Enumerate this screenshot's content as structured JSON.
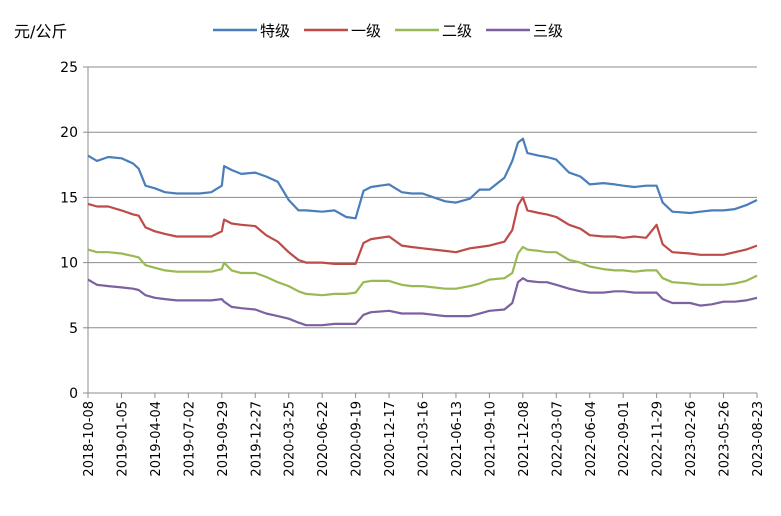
{
  "chart_data": {
    "type": "line",
    "title": "",
    "ylabel": "元/公斤",
    "xlabel": "",
    "ylim": [
      0,
      25
    ],
    "yticks": [
      0,
      5,
      10,
      15,
      20,
      25
    ],
    "grid": "horizontal",
    "legend_position": "top-center",
    "x_start": "2018-10-08",
    "x_end": "2023-08-23",
    "x_tick_labels": [
      "2018-10-08",
      "2019-01-05",
      "2019-04-04",
      "2019-07-02",
      "2019-09-29",
      "2019-12-27",
      "2020-03-25",
      "2020-06-22",
      "2020-09-19",
      "2020-12-17",
      "2021-03-16",
      "2021-06-13",
      "2021-09-10",
      "2021-12-08",
      "2022-03-07",
      "2022-06-04",
      "2022-09-01",
      "2022-11-29",
      "2023-02-26",
      "2023-05-26",
      "2023-08-23"
    ],
    "x": [
      "2018-10-08",
      "2018-11-01",
      "2018-12-01",
      "2019-01-05",
      "2019-02-05",
      "2019-02-20",
      "2019-03-10",
      "2019-04-04",
      "2019-05-01",
      "2019-06-01",
      "2019-07-02",
      "2019-08-01",
      "2019-09-01",
      "2019-09-29",
      "2019-10-05",
      "2019-10-25",
      "2019-11-20",
      "2019-12-27",
      "2020-01-25",
      "2020-02-25",
      "2020-03-25",
      "2020-04-20",
      "2020-05-10",
      "2020-06-22",
      "2020-07-25",
      "2020-08-25",
      "2020-09-19",
      "2020-10-10",
      "2020-10-30",
      "2020-12-17",
      "2021-01-20",
      "2021-02-15",
      "2021-03-16",
      "2021-04-15",
      "2021-05-15",
      "2021-06-13",
      "2021-07-20",
      "2021-08-15",
      "2021-09-10",
      "2021-10-20",
      "2021-11-10",
      "2021-11-25",
      "2021-12-08",
      "2021-12-20",
      "2022-01-20",
      "2022-02-10",
      "2022-03-07",
      "2022-04-10",
      "2022-05-10",
      "2022-06-04",
      "2022-07-10",
      "2022-08-10",
      "2022-09-01",
      "2022-10-01",
      "2022-11-01",
      "2022-11-29",
      "2022-12-15",
      "2023-01-10",
      "2023-02-26",
      "2023-03-25",
      "2023-04-25",
      "2023-05-26",
      "2023-06-25",
      "2023-07-25",
      "2023-08-23"
    ],
    "series": [
      {
        "name": "特级",
        "color": "#4A7EBB",
        "values": [
          18.2,
          17.8,
          18.1,
          18.0,
          17.6,
          17.2,
          15.9,
          15.7,
          15.4,
          15.3,
          15.3,
          15.3,
          15.4,
          15.9,
          17.4,
          17.1,
          16.8,
          16.9,
          16.6,
          16.2,
          14.8,
          14.0,
          14.0,
          13.9,
          14.0,
          13.5,
          13.4,
          15.5,
          15.8,
          16.0,
          15.4,
          15.3,
          15.3,
          15.0,
          14.7,
          14.6,
          14.9,
          15.6,
          15.6,
          16.5,
          17.8,
          19.2,
          19.5,
          18.4,
          18.2,
          18.1,
          17.9,
          16.9,
          16.6,
          16.0,
          16.1,
          16.0,
          15.9,
          15.8,
          15.9,
          15.9,
          14.6,
          13.9,
          13.8,
          13.9,
          14.0,
          14.0,
          14.1,
          14.4,
          14.8
        ]
      },
      {
        "name": "一级",
        "color": "#BE4B48",
        "values": [
          14.5,
          14.3,
          14.3,
          14.0,
          13.7,
          13.6,
          12.7,
          12.4,
          12.2,
          12.0,
          12.0,
          12.0,
          12.0,
          12.4,
          13.3,
          13.0,
          12.9,
          12.8,
          12.1,
          11.6,
          10.8,
          10.2,
          10.0,
          10.0,
          9.9,
          9.9,
          9.9,
          11.5,
          11.8,
          12.0,
          11.3,
          11.2,
          11.1,
          11.0,
          10.9,
          10.8,
          11.1,
          11.2,
          11.3,
          11.6,
          12.5,
          14.4,
          15.0,
          14.0,
          13.8,
          13.7,
          13.5,
          12.9,
          12.6,
          12.1,
          12.0,
          12.0,
          11.9,
          12.0,
          11.9,
          12.9,
          11.4,
          10.8,
          10.7,
          10.6,
          10.6,
          10.6,
          10.8,
          11.0,
          11.3
        ]
      },
      {
        "name": "二级",
        "color": "#98B954",
        "values": [
          11.0,
          10.8,
          10.8,
          10.7,
          10.5,
          10.4,
          9.8,
          9.6,
          9.4,
          9.3,
          9.3,
          9.3,
          9.3,
          9.5,
          10.0,
          9.4,
          9.2,
          9.2,
          8.9,
          8.5,
          8.2,
          7.8,
          7.6,
          7.5,
          7.6,
          7.6,
          7.7,
          8.5,
          8.6,
          8.6,
          8.3,
          8.2,
          8.2,
          8.1,
          8.0,
          8.0,
          8.2,
          8.4,
          8.7,
          8.8,
          9.2,
          10.7,
          11.2,
          11.0,
          10.9,
          10.8,
          10.8,
          10.2,
          10.0,
          9.7,
          9.5,
          9.4,
          9.4,
          9.3,
          9.4,
          9.4,
          8.8,
          8.5,
          8.4,
          8.3,
          8.3,
          8.3,
          8.4,
          8.6,
          9.0
        ]
      },
      {
        "name": "三级",
        "color": "#7D60A0",
        "values": [
          8.7,
          8.3,
          8.2,
          8.1,
          8.0,
          7.9,
          7.5,
          7.3,
          7.2,
          7.1,
          7.1,
          7.1,
          7.1,
          7.2,
          7.0,
          6.6,
          6.5,
          6.4,
          6.1,
          5.9,
          5.7,
          5.4,
          5.2,
          5.2,
          5.3,
          5.3,
          5.3,
          6.0,
          6.2,
          6.3,
          6.1,
          6.1,
          6.1,
          6.0,
          5.9,
          5.9,
          5.9,
          6.1,
          6.3,
          6.4,
          6.9,
          8.5,
          8.8,
          8.6,
          8.5,
          8.5,
          8.3,
          8.0,
          7.8,
          7.7,
          7.7,
          7.8,
          7.8,
          7.7,
          7.7,
          7.7,
          7.2,
          6.9,
          6.9,
          6.7,
          6.8,
          7.0,
          7.0,
          7.1,
          7.3
        ]
      }
    ]
  }
}
